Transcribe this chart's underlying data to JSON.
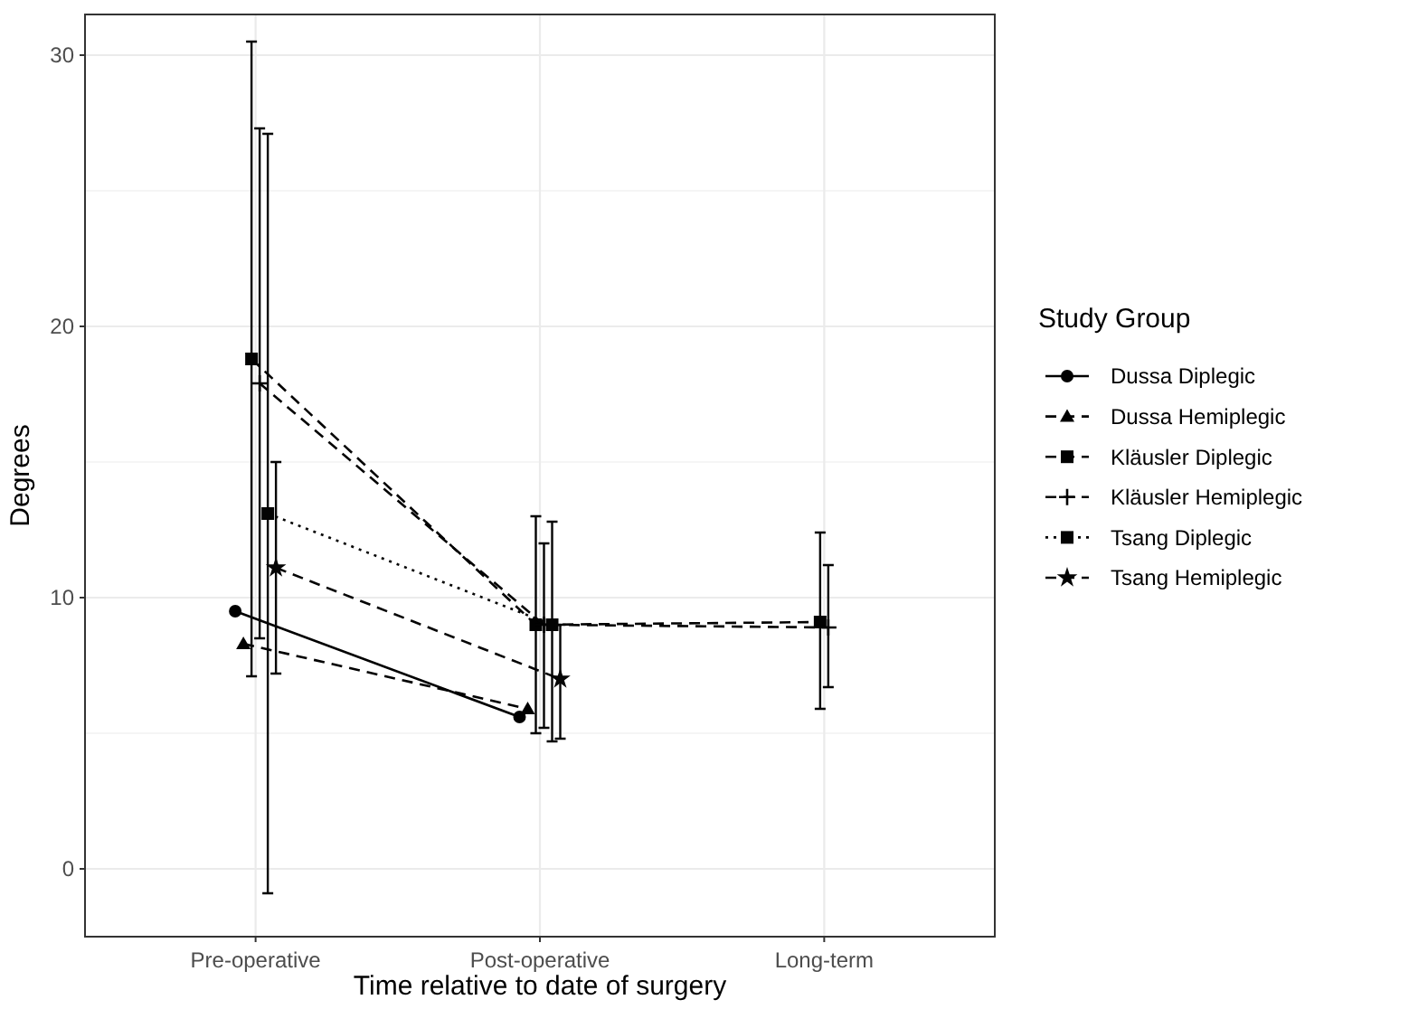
{
  "chart_data": {
    "type": "line",
    "xlabel": "Time relative to date of surgery",
    "ylabel": "Degrees",
    "legend_title": "Study Group",
    "legend": "right",
    "grid": true,
    "categories": [
      "Pre-operative",
      "Post-operative",
      "Long-term"
    ],
    "ylim": [
      -2.5,
      31.5
    ],
    "yticks": [
      0,
      {
        "value": 5,
        "label": null
      },
      10,
      {
        "value": 15,
        "label": null
      },
      20,
      {
        "value": 25,
        "label": null
      },
      30
    ],
    "series": [
      {
        "name": "Dussa Diplegic",
        "color": "#000000",
        "marker": "circle",
        "line_style": "solid",
        "values": [
          9.5,
          5.6,
          null
        ]
      },
      {
        "name": "Dussa Hemiplegic",
        "color": "#010101",
        "marker": "triangle",
        "line_style": "dashed",
        "values": [
          8.3,
          5.9,
          null
        ]
      },
      {
        "name": "Kläusler Diplegic",
        "color": "#020202",
        "marker": "square",
        "line_style": "dashed",
        "values": [
          18.8,
          9.0,
          9.1
        ],
        "errors": [
          [
            7.1,
            30.5
          ],
          [
            5.0,
            13.0
          ],
          [
            5.9,
            12.4
          ]
        ]
      },
      {
        "name": "Kläusler Hemiplegic",
        "color": "#030303",
        "marker": "cross",
        "line_style": "dashed",
        "values": [
          17.9,
          9.0,
          8.9
        ],
        "errors": [
          [
            8.5,
            27.3
          ],
          [
            5.2,
            12.0
          ],
          [
            6.7,
            11.2
          ]
        ]
      },
      {
        "name": "Tsang Diplegic",
        "color": "#040404",
        "marker": "square",
        "line_style": "dotted",
        "values": [
          13.1,
          9.0,
          null
        ],
        "errors": [
          [
            -0.9,
            27.1
          ],
          [
            4.7,
            12.8
          ],
          null
        ]
      },
      {
        "name": "Tsang Hemiplegic",
        "color": "#050505",
        "marker": "star",
        "line_style": "dashed",
        "values": [
          11.1,
          7.0,
          null
        ],
        "errors": [
          [
            7.2,
            15.0
          ],
          [
            4.8,
            9.0
          ],
          null
        ]
      }
    ]
  }
}
